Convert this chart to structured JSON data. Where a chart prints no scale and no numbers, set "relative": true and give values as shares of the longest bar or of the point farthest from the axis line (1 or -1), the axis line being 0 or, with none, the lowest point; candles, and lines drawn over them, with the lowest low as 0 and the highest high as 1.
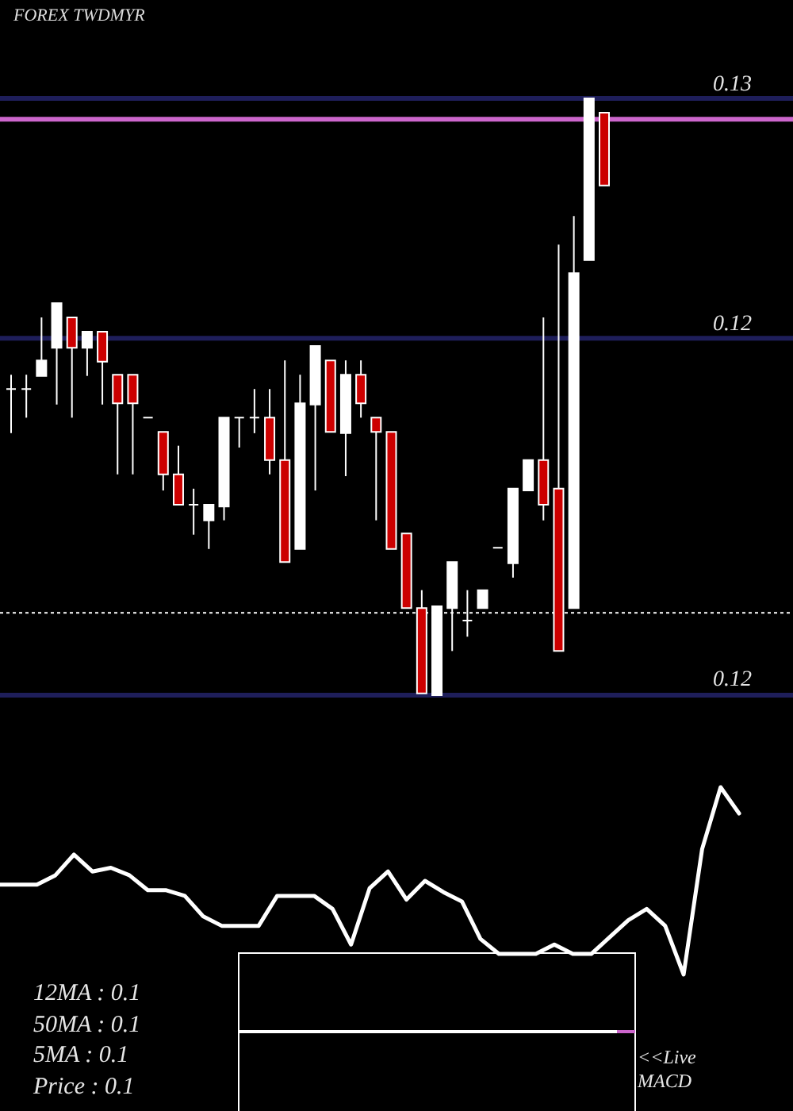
{
  "chart_data": [
    {
      "type": "candlestick",
      "title": "FOREX TWDMYR",
      "relative": true,
      "categories": [
        null,
        null,
        null,
        null,
        null,
        null,
        null,
        null,
        null,
        null,
        null,
        null,
        null,
        null,
        null,
        null,
        null,
        null,
        null,
        null,
        null,
        null,
        null,
        null,
        null,
        null,
        null,
        null,
        null,
        null,
        null,
        null,
        null,
        null,
        null,
        null,
        null,
        null,
        null,
        null
      ],
      "ohlc": [
        [
          0.513,
          0.537,
          0.439,
          0.513
        ],
        [
          0.513,
          0.537,
          0.465,
          0.513
        ],
        [
          0.535,
          0.633,
          0.535,
          0.561
        ],
        [
          0.582,
          0.657,
          0.487,
          0.657
        ],
        [
          0.633,
          0.633,
          0.465,
          0.582
        ],
        [
          0.582,
          0.609,
          0.535,
          0.609
        ],
        [
          0.609,
          0.609,
          0.487,
          0.559
        ],
        [
          0.537,
          0.537,
          0.37,
          0.489
        ],
        [
          0.537,
          0.537,
          0.37,
          0.489
        ],
        [
          0.465,
          0.465,
          0.465,
          0.465
        ],
        [
          0.441,
          0.441,
          0.343,
          0.37
        ],
        [
          0.37,
          0.418,
          0.319,
          0.319
        ],
        [
          0.319,
          0.346,
          0.269,
          0.319
        ],
        [
          0.293,
          0.319,
          0.245,
          0.319
        ],
        [
          0.316,
          0.465,
          0.293,
          0.465
        ],
        [
          0.465,
          0.465,
          0.415,
          0.465
        ],
        [
          0.465,
          0.513,
          0.439,
          0.465
        ],
        [
          0.465,
          0.513,
          0.37,
          0.394
        ],
        [
          0.394,
          0.561,
          0.223,
          0.223
        ],
        [
          0.245,
          0.537,
          0.245,
          0.489
        ],
        [
          0.487,
          0.585,
          0.343,
          0.585
        ],
        [
          0.561,
          0.561,
          0.441,
          0.441
        ],
        [
          0.439,
          0.561,
          0.367,
          0.537
        ],
        [
          0.537,
          0.561,
          0.465,
          0.489
        ],
        [
          0.465,
          0.465,
          0.293,
          0.441
        ],
        [
          0.441,
          0.441,
          0.245,
          0.245
        ],
        [
          0.271,
          0.271,
          0.146,
          0.146
        ],
        [
          0.146,
          0.176,
          0.003,
          0.003
        ],
        [
          0,
          0.149,
          0,
          0.149
        ],
        [
          0.146,
          0.223,
          0.074,
          0.223
        ],
        [
          0.125,
          0.176,
          0.098,
          0.125
        ],
        [
          0.146,
          0.176,
          0.146,
          0.176
        ],
        [
          0.247,
          0.247,
          0.247,
          0.247
        ],
        [
          0.221,
          0.346,
          0.197,
          0.346
        ],
        [
          0.343,
          0.394,
          0.343,
          0.394
        ],
        [
          0.394,
          0.633,
          0.293,
          0.319
        ],
        [
          0.346,
          0.755,
          0.074,
          0.074
        ],
        [
          0.146,
          0.803,
          0.146,
          0.707
        ],
        [
          0.729,
          1,
          0.729,
          1
        ],
        [
          0.976,
          0.976,
          0.854,
          0.854
        ]
      ],
      "colors": [
        "#ffffff",
        "#ffffff",
        "#ffffff",
        "#ffffff",
        "#cc0000",
        "#ffffff",
        "#cc0000",
        "#cc0000",
        "#cc0000",
        "#ffffff",
        "#cc0000",
        "#cc0000",
        "#ffffff",
        "#ffffff",
        "#ffffff",
        "#ffffff",
        "#ffffff",
        "#cc0000",
        "#cc0000",
        "#ffffff",
        "#ffffff",
        "#cc0000",
        "#ffffff",
        "#cc0000",
        "#cc0000",
        "#cc0000",
        "#cc0000",
        "#cc0000",
        "#ffffff",
        "#ffffff",
        "#ffffff",
        "#ffffff",
        "#ffffff",
        "#ffffff",
        "#ffffff",
        "#cc0000",
        "#cc0000",
        "#ffffff",
        "#ffffff",
        "#cc0000"
      ],
      "ref_lines": [
        {
          "axis": "y",
          "value": 1,
          "color": "#1e1e5a"
        },
        {
          "axis": "y",
          "value": 0.965,
          "color": "#cc66cc"
        },
        {
          "axis": "y",
          "value": 0.598,
          "color": "#1e1e5a"
        },
        {
          "axis": "y",
          "value": 0.138,
          "color": "#ffffff",
          "line_style": "dotted"
        },
        {
          "axis": "y",
          "value": 0,
          "color": "#1e1e5a"
        }
      ],
      "annotations": [
        "0.13",
        "0.12",
        "0.12"
      ]
    },
    {
      "type": "line",
      "relative": true,
      "categories": [
        null,
        null,
        null,
        null,
        null,
        null,
        null,
        null,
        null,
        null,
        null,
        null,
        null,
        null,
        null,
        null,
        null,
        null,
        null,
        null,
        null,
        null,
        null,
        null,
        null,
        null,
        null,
        null,
        null,
        null,
        null,
        null,
        null,
        null,
        null,
        null,
        null,
        null,
        null,
        null,
        null
      ],
      "series": [
        {
          "color": "#ffffff",
          "values": [
            0.48,
            0.48,
            0.48,
            0.53,
            0.64,
            0.55,
            0.57,
            0.53,
            0.45,
            0.45,
            0.42,
            0.31,
            0.26,
            0.26,
            0.26,
            0.42,
            0.42,
            0.42,
            0.35,
            0.16,
            0.46,
            0.55,
            0.4,
            0.5,
            0.44,
            0.39,
            0.19,
            0.11,
            0.11,
            0.11,
            0.16,
            0.11,
            0.11,
            0.2,
            0.29,
            0.35,
            0.26,
            0,
            0.67,
            1,
            0.86
          ]
        }
      ],
      "annotations": [
        "12MA : 0.1",
        "50MA : 0.1",
        "5MA : 0.1",
        "Price : 0.1",
        "<<Live",
        "MACD"
      ]
    }
  ]
}
